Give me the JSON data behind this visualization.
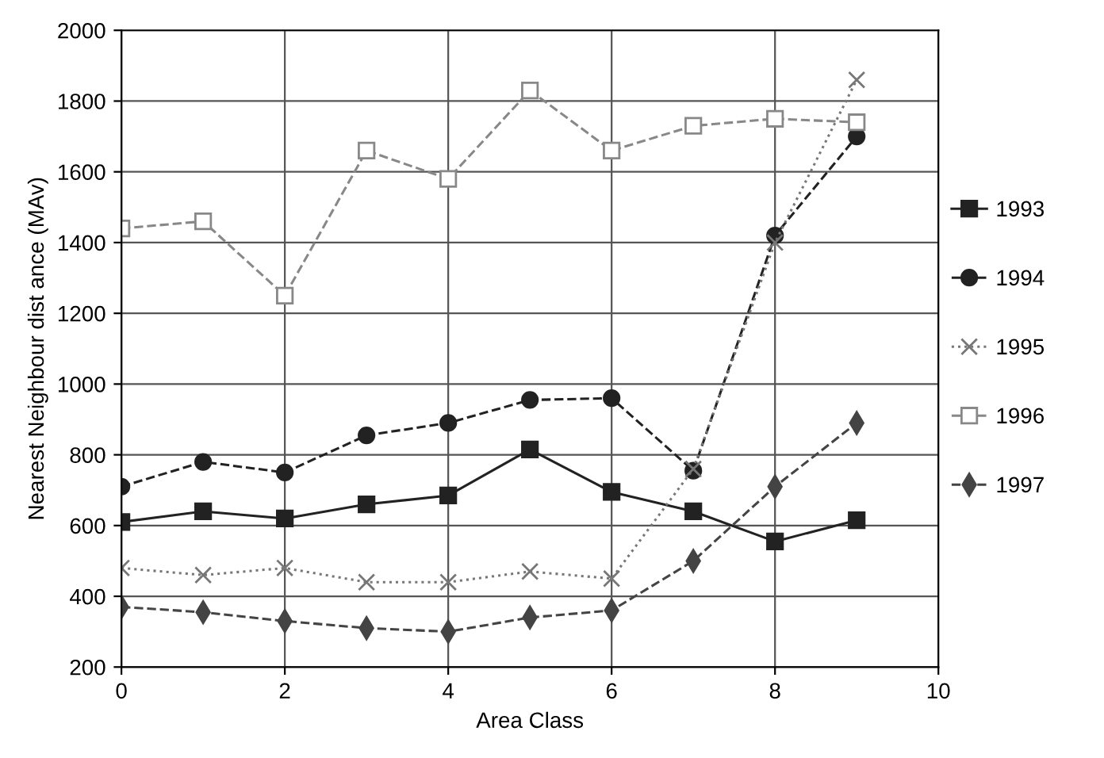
{
  "chart_data": {
    "type": "line",
    "xlabel": "Area Class",
    "ylabel": "Nearest Neighbour dist ance (MAv)",
    "x": [
      0,
      1,
      2,
      3,
      4,
      5,
      6,
      7,
      8,
      9
    ],
    "xlim": [
      0,
      10
    ],
    "xticks": [
      0,
      2,
      4,
      6,
      8,
      10
    ],
    "ylim": [
      200,
      2000
    ],
    "yticks": [
      200,
      400,
      600,
      800,
      1000,
      1200,
      1400,
      1600,
      1800,
      2000
    ],
    "grid": true,
    "legend": "right",
    "series": [
      {
        "name": "1993",
        "color": "#222222",
        "marker": "square",
        "line_style": "solid",
        "values": [
          610,
          640,
          620,
          660,
          685,
          815,
          695,
          640,
          555,
          615
        ]
      },
      {
        "name": "1994",
        "color": "#222222",
        "marker": "circle",
        "line_style": "dashed",
        "values": [
          710,
          780,
          750,
          855,
          890,
          955,
          960,
          755,
          1420,
          1700
        ]
      },
      {
        "name": "1995",
        "color": "#777777",
        "marker": "cross",
        "line_style": "dotted",
        "values": [
          480,
          460,
          480,
          440,
          440,
          470,
          450,
          760,
          1400,
          1860
        ]
      },
      {
        "name": "1996",
        "color": "#888888",
        "marker": "square",
        "line_style": "dashed",
        "values": [
          1440,
          1460,
          1250,
          1660,
          1580,
          1830,
          1660,
          1730,
          1750,
          1740
        ]
      },
      {
        "name": "1997",
        "color": "#444444",
        "marker": "diamond",
        "line_style": "dashed",
        "values": [
          370,
          355,
          330,
          310,
          300,
          340,
          360,
          500,
          710,
          890
        ]
      }
    ]
  }
}
